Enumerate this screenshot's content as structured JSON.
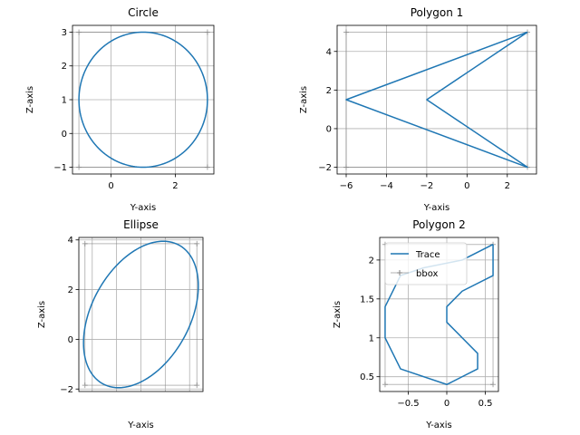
{
  "chart_data": [
    {
      "type": "line",
      "title": "Circle",
      "xlabel": "Y-axis",
      "ylabel": "Z-axis",
      "xlim": [
        -1.2,
        3.2
      ],
      "ylim": [
        -1.2,
        3.2
      ],
      "xticks": [
        0,
        2
      ],
      "yticks": [
        -1,
        0,
        1,
        2,
        3
      ],
      "grid": true,
      "shape": {
        "kind": "ellipse",
        "center": [
          1,
          1
        ],
        "radii": [
          2,
          2
        ],
        "angle_deg": 0
      },
      "bbox": {
        "x": [
          -1,
          3
        ],
        "y": [
          -1,
          3
        ]
      },
      "series": [
        {
          "values": "circle centered at (1, 1), radius 2"
        }
      ]
    },
    {
      "type": "line",
      "title": "Polygon 1",
      "xlabel": "Y-axis",
      "ylabel": "Z-axis",
      "xlim": [
        -6.45,
        3.45
      ],
      "ylim": [
        -2.35,
        5.35
      ],
      "xticks": [
        -6,
        -4,
        -2,
        0,
        2
      ],
      "yticks": [
        -2,
        0,
        2,
        4
      ],
      "grid": true,
      "points": [
        [
          3,
          5
        ],
        [
          -2,
          1.5
        ],
        [
          3,
          -2
        ],
        [
          -6,
          1.5
        ],
        [
          3,
          5
        ]
      ],
      "bbox": {
        "x": [
          -6,
          3
        ],
        "y": [
          -2,
          5
        ]
      }
    },
    {
      "type": "line",
      "title": "Ellipse",
      "xlabel": "Y-axis",
      "ylabel": "Z-axis",
      "xlim": [
        -1.55,
        3.55
      ],
      "ylim": [
        -2.1,
        4.1
      ],
      "xticks": [],
      "yticks": [
        -2,
        0,
        2,
        4
      ],
      "grid": true,
      "shape": {
        "kind": "ellipse",
        "center": [
          1,
          1
        ],
        "radii": [
          3.2,
          2.0
        ],
        "angle_deg": 60
      },
      "bbox": {
        "x": [
          -1.3,
          3.3
        ],
        "y": [
          -1.85,
          3.85
        ]
      }
    },
    {
      "type": "line",
      "title": "Polygon 2",
      "xlabel": "Y-axis",
      "ylabel": "Z-axis",
      "xlim": [
        -0.87,
        0.67
      ],
      "ylim": [
        0.31,
        2.29
      ],
      "xticks": [
        -0.5,
        0.0,
        0.5
      ],
      "yticks": [
        0.5,
        1.0,
        1.5,
        2.0
      ],
      "grid": true,
      "points": [
        [
          0.6,
          2.2
        ],
        [
          0.6,
          1.8
        ],
        [
          0.2,
          1.6
        ],
        [
          0.0,
          1.4
        ],
        [
          0.0,
          1.2
        ],
        [
          0.4,
          0.8
        ],
        [
          0.4,
          0.6
        ],
        [
          0.0,
          0.4
        ],
        [
          -0.6,
          0.6
        ],
        [
          -0.8,
          1.0
        ],
        [
          -0.8,
          1.4
        ],
        [
          -0.6,
          1.8
        ],
        [
          -0.3,
          1.9
        ],
        [
          0.2,
          2.0
        ],
        [
          0.6,
          2.2
        ]
      ],
      "bbox": {
        "x": [
          -0.8,
          0.6
        ],
        "y": [
          0.4,
          2.2
        ]
      },
      "legend": {
        "placement": "upper-left",
        "entries": [
          "Trace",
          "bbox"
        ]
      }
    }
  ],
  "colors": {
    "trace": "#1f77b4",
    "bbox": "#808080",
    "grid": "#b0b0b0",
    "axes": "#000000"
  }
}
